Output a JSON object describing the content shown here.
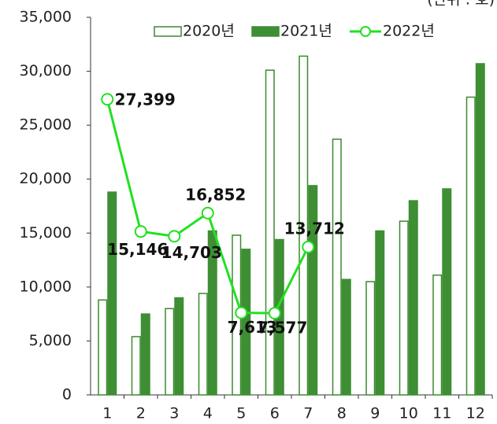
{
  "chart_data": {
    "type": "bar-line",
    "unit_note": "(단위 : 호)",
    "categories": [
      "1",
      "2",
      "3",
      "4",
      "5",
      "6",
      "7",
      "8",
      "9",
      "10",
      "11",
      "12"
    ],
    "series": [
      {
        "name": "2020년",
        "type": "bar",
        "color": "#3a8a2e",
        "fill": "#ffffff",
        "values": [
          8800,
          5400,
          8000,
          9400,
          14800,
          30100,
          31400,
          23700,
          10500,
          16100,
          11100,
          27600
        ]
      },
      {
        "name": "2021년",
        "type": "bar",
        "color": "#3e8e34",
        "fill": "#3e8e34",
        "values": [
          18800,
          7500,
          9000,
          15200,
          13500,
          14400,
          19400,
          10700,
          15200,
          18000,
          19100,
          30700
        ]
      },
      {
        "name": "2022년",
        "type": "line",
        "color": "#22e022",
        "values": [
          27399,
          15146,
          14703,
          16852,
          7613,
          7577,
          13712,
          null,
          null,
          null,
          null,
          null
        ],
        "value_labels": [
          "27,399",
          "15,146",
          "14,703",
          "16,852",
          "7,613",
          "7,577",
          "13,712",
          null,
          null,
          null,
          null,
          null
        ]
      }
    ],
    "ylim": [
      0,
      35000
    ],
    "yticks": [
      0,
      {
        "value": 5000,
        "label": "5,000"
      },
      {
        "value": 10000,
        "label": "10,000"
      },
      {
        "value": 15000,
        "label": "15,000"
      },
      {
        "value": 20000,
        "label": "20,000"
      },
      {
        "value": 25000,
        "label": "25,000"
      },
      {
        "value": 30000,
        "label": "30,000"
      },
      {
        "value": 35000,
        "label": "35,000"
      }
    ],
    "legend": "top"
  }
}
